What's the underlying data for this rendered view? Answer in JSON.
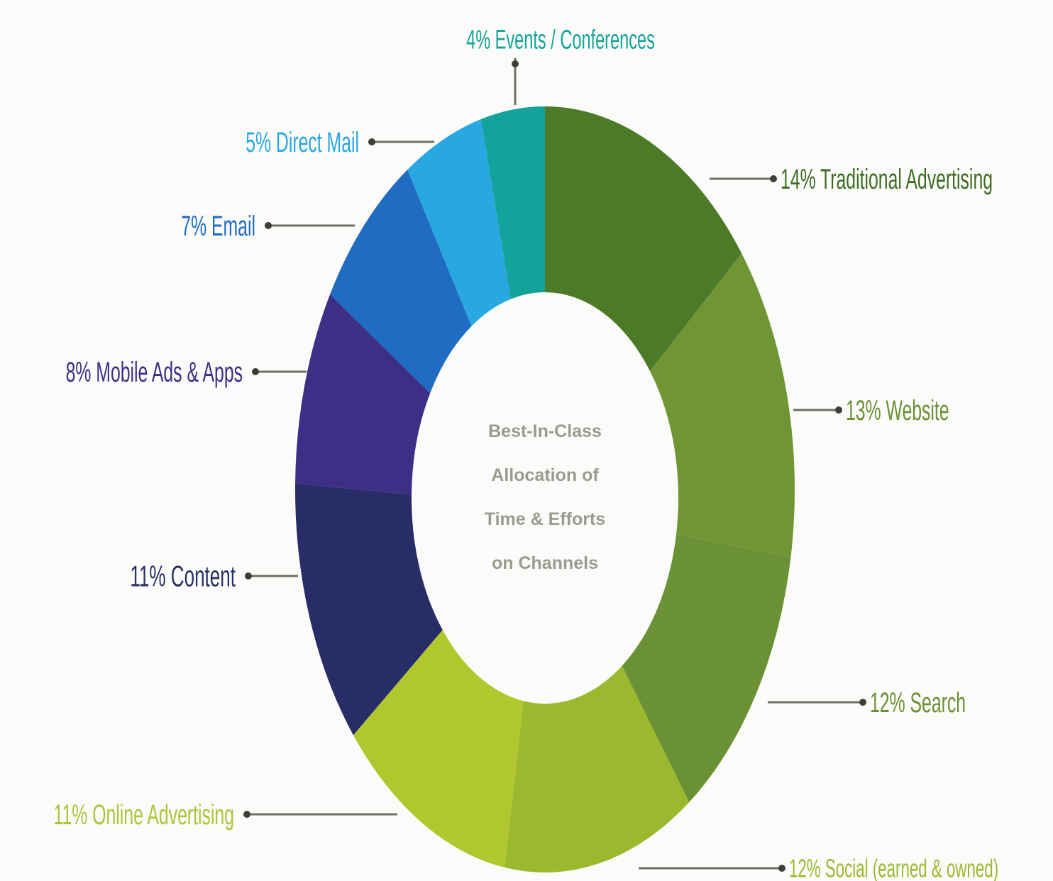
{
  "chart_data": {
    "type": "pie",
    "variant": "donut",
    "center_title_lines": [
      "Best-In-Class",
      "Allocation of",
      "Time & Efforts",
      "on Channels"
    ],
    "slices": [
      {
        "label": "14% Traditional Advertising",
        "value": 14,
        "color": "#4d7a27",
        "label_color": "#3f6b22"
      },
      {
        "label": "13% Website",
        "value": 13,
        "color": "#6f9534",
        "label_color": "#6b8f32"
      },
      {
        "label": "12% Search",
        "value": 12,
        "color": "#6a9133",
        "label_color": "#6b8f32"
      },
      {
        "label": "12% Social (earned & owned)",
        "value": 12,
        "color": "#9cb82f",
        "label_color": "#9cb82f"
      },
      {
        "label": "11% Online Advertising",
        "value": 11,
        "color": "#b0c72d",
        "label_color": "#aec33a"
      },
      {
        "label": "11% Content",
        "value": 11,
        "color": "#282d68",
        "label_color": "#2a2f66"
      },
      {
        "label": "8% Mobile Ads & Apps",
        "value": 8,
        "color": "#3d2f86",
        "label_color": "#3d2f86"
      },
      {
        "label": "7% Email",
        "value": 7,
        "color": "#1f6cc0",
        "label_color": "#1f6cc0"
      },
      {
        "label": "5% Direct Mail",
        "value": 5,
        "color": "#29a7e1",
        "label_color": "#29a7e1"
      },
      {
        "label": "4% Events / Conferences",
        "value": 4,
        "color": "#14a39a",
        "label_color": "#13a497"
      }
    ]
  }
}
